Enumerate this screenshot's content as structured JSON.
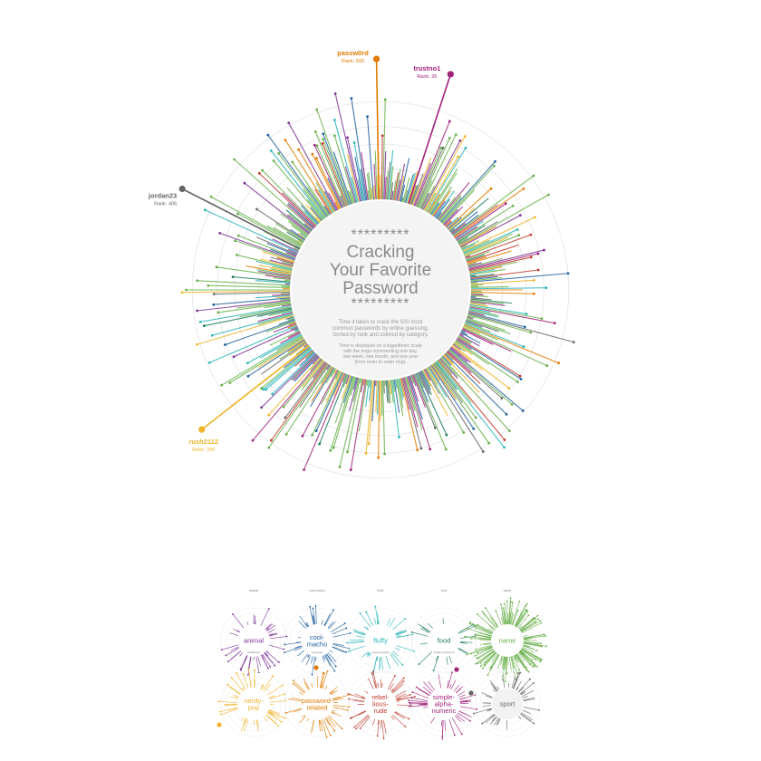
{
  "title": {
    "stars_top": "*********",
    "line1": "Cracking",
    "line2": "Your Favorite",
    "line3": "Password",
    "stars_bottom": "*********"
  },
  "description": {
    "para1": [
      "Time it takes to crack the 500 most",
      "common passwords by online guessing.",
      "Sorted by rank and colored by category."
    ],
    "para2": [
      "Time is displayed on a logarithmic scale",
      "with the rings representing one day,",
      "one week, one month, and one year",
      "(from inner to outer ring)."
    ]
  },
  "colors": {
    "animal": "#7b3294",
    "cool-macho": "#1f5f9f",
    "fluffy": "#2bb5b8",
    "food": "#1a7a5a",
    "name": "#6ab04c",
    "nerdy-pop": "#f0b429",
    "password-related": "#e07b00",
    "rebellious-rude": "#c0392b",
    "simple-alphanumeric": "#a0237a",
    "sport": "#666666",
    "ring": "#e6e6e6",
    "center_fill": "#f4f4f4",
    "title_text": "#8a8a8a"
  },
  "chart_data": {
    "type": "radial-bar",
    "scale": "log",
    "rings": [
      "one day",
      "one week",
      "one month",
      "one year"
    ],
    "n_items": 500,
    "highlights": [
      {
        "label": "passw0rd",
        "rank_text": "Rank: 500",
        "category": "password-related",
        "angle_deg": -1,
        "length": 1.0
      },
      {
        "label": "trustno1",
        "rank_text": "Rank: 26",
        "category": "simple-alphanumeric",
        "angle_deg": 18,
        "length": 0.97
      },
      {
        "label": "jordan23",
        "rank_text": "Rank: 406",
        "category": "sport",
        "angle_deg": -63,
        "length": 0.94
      },
      {
        "label": "rush2112",
        "rank_text": "Rank: 336",
        "category": "nerdy-pop",
        "angle_deg": -128,
        "length": 0.97
      }
    ]
  },
  "small_multiples": [
    {
      "category": "animal",
      "header": "animal",
      "label": "animal",
      "sub": "gorillaman",
      "color": "#7b3294"
    },
    {
      "category": "cool-macho",
      "header": "cool-macho",
      "label": "cool-\nmacho",
      "sub": "computer",
      "color": "#1f5f9f"
    },
    {
      "category": "fluffy",
      "header": "fluffy",
      "label": "fluffy",
      "sub": "pussy-cat-ahe",
      "color": "#2bb5b8"
    },
    {
      "category": "food",
      "header": "food",
      "label": "food",
      "sub": "single-compound",
      "color": "#1a7a5a"
    },
    {
      "category": "name",
      "header": "name",
      "label": "name",
      "sub": "",
      "color": "#6ab04c"
    },
    {
      "category": "nerdy-pop",
      "header": "",
      "label": "nerdy-\npop",
      "sub": "",
      "color": "#f0b429"
    },
    {
      "category": "password-related",
      "header": "",
      "label": "password-\nrelated",
      "sub": "",
      "color": "#e07b00"
    },
    {
      "category": "rebellious-rude",
      "header": "",
      "label": "rebel-\nlious-\nrude",
      "sub": "",
      "color": "#c0392b"
    },
    {
      "category": "simple-alphanumeric",
      "header": "",
      "label": "simple-\nalpha-\nnumeric",
      "sub": "",
      "color": "#a0237a"
    },
    {
      "category": "sport",
      "header": "",
      "label": "sport",
      "sub": "",
      "color": "#666666"
    }
  ]
}
